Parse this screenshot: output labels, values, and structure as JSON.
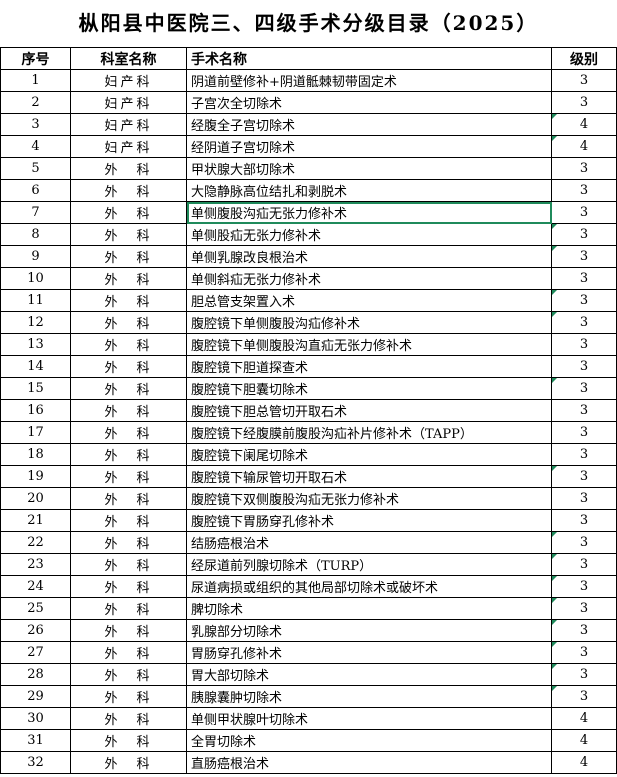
{
  "title": "枞阳县中医院三、四级手术分级目录（2025）",
  "headers": [
    "序号",
    "科室名称",
    "手术名称",
    "级别"
  ],
  "selected_row": 7,
  "colors": {
    "selection": "#1f8a5b",
    "grid": "#000000"
  },
  "rows": [
    {
      "no": "1",
      "dept": "妇产科",
      "name": "阴道前壁修补+阴道骶棘韧带固定术",
      "level": "3"
    },
    {
      "no": "2",
      "dept": "妇产科",
      "name": "子宫次全切除术",
      "level": "3"
    },
    {
      "no": "3",
      "dept": "妇产科",
      "name": "经腹全子宫切除术",
      "level": "4",
      "flag": true
    },
    {
      "no": "4",
      "dept": "妇产科",
      "name": "经阴道子宫切除术",
      "level": "4",
      "flag": true
    },
    {
      "no": "5",
      "dept": "外　科",
      "name": "甲状腺大部切除术",
      "level": "3"
    },
    {
      "no": "6",
      "dept": "外　科",
      "name": "大隐静脉高位结扎和剥脱术",
      "level": "3"
    },
    {
      "no": "7",
      "dept": "外　科",
      "name": "单侧腹股沟疝无张力修补术",
      "level": "3"
    },
    {
      "no": "8",
      "dept": "外　科",
      "name": "单侧股疝无张力修补术",
      "level": "3",
      "flag": true
    },
    {
      "no": "9",
      "dept": "外　科",
      "name": "单侧乳腺改良根治术",
      "level": "3",
      "flag": true
    },
    {
      "no": "10",
      "dept": "外　科",
      "name": "单侧斜疝无张力修补术",
      "level": "3"
    },
    {
      "no": "11",
      "dept": "外　科",
      "name": "胆总管支架置入术",
      "level": "3",
      "flag": true
    },
    {
      "no": "12",
      "dept": "外　科",
      "name": "腹腔镜下单侧腹股沟疝修补术",
      "level": "3",
      "flag": true
    },
    {
      "no": "13",
      "dept": "外　科",
      "name": "腹腔镜下单侧腹股沟直疝无张力修补术",
      "level": "3"
    },
    {
      "no": "14",
      "dept": "外　科",
      "name": "腹腔镜下胆道探查术",
      "level": "3"
    },
    {
      "no": "15",
      "dept": "外　科",
      "name": "腹腔镜下胆囊切除术",
      "level": "3",
      "flag": true
    },
    {
      "no": "16",
      "dept": "外　科",
      "name": "腹腔镜下胆总管切开取石术",
      "level": "3"
    },
    {
      "no": "17",
      "dept": "外　科",
      "name": "腹腔镜下经腹膜前腹股沟疝补片修补术（TAPP）",
      "level": "3"
    },
    {
      "no": "18",
      "dept": "外　科",
      "name": "腹腔镜下阑尾切除术",
      "level": "3"
    },
    {
      "no": "19",
      "dept": "外　科",
      "name": "腹腔镜下输尿管切开取石术",
      "level": "3",
      "flag": true
    },
    {
      "no": "20",
      "dept": "外　科",
      "name": "腹腔镜下双侧腹股沟疝无张力修补术",
      "level": "3"
    },
    {
      "no": "21",
      "dept": "外　科",
      "name": "腹腔镜下胃肠穿孔修补术",
      "level": "3"
    },
    {
      "no": "22",
      "dept": "外　科",
      "name": "结肠癌根治术",
      "level": "3",
      "flag": true
    },
    {
      "no": "23",
      "dept": "外　科",
      "name": "经尿道前列腺切除术（TURP）",
      "level": "3",
      "flag": true
    },
    {
      "no": "24",
      "dept": "外　科",
      "name": "尿道病损或组织的其他局部切除术或破坏术",
      "level": "3",
      "flag": true
    },
    {
      "no": "25",
      "dept": "外　科",
      "name": "脾切除术",
      "level": "3",
      "flag": true
    },
    {
      "no": "26",
      "dept": "外　科",
      "name": "乳腺部分切除术",
      "level": "3",
      "flag": true
    },
    {
      "no": "27",
      "dept": "外　科",
      "name": "胃肠穿孔修补术",
      "level": "3",
      "flag": true
    },
    {
      "no": "28",
      "dept": "外　科",
      "name": "胃大部切除术",
      "level": "3",
      "flag": true
    },
    {
      "no": "29",
      "dept": "外　科",
      "name": "胰腺囊肿切除术",
      "level": "3",
      "flag": true
    },
    {
      "no": "30",
      "dept": "外　科",
      "name": "单侧甲状腺叶切除术",
      "level": "4"
    },
    {
      "no": "31",
      "dept": "外　科",
      "name": "全胃切除术",
      "level": "4"
    },
    {
      "no": "32",
      "dept": "外　科",
      "name": "直肠癌根治术",
      "level": "4"
    }
  ]
}
